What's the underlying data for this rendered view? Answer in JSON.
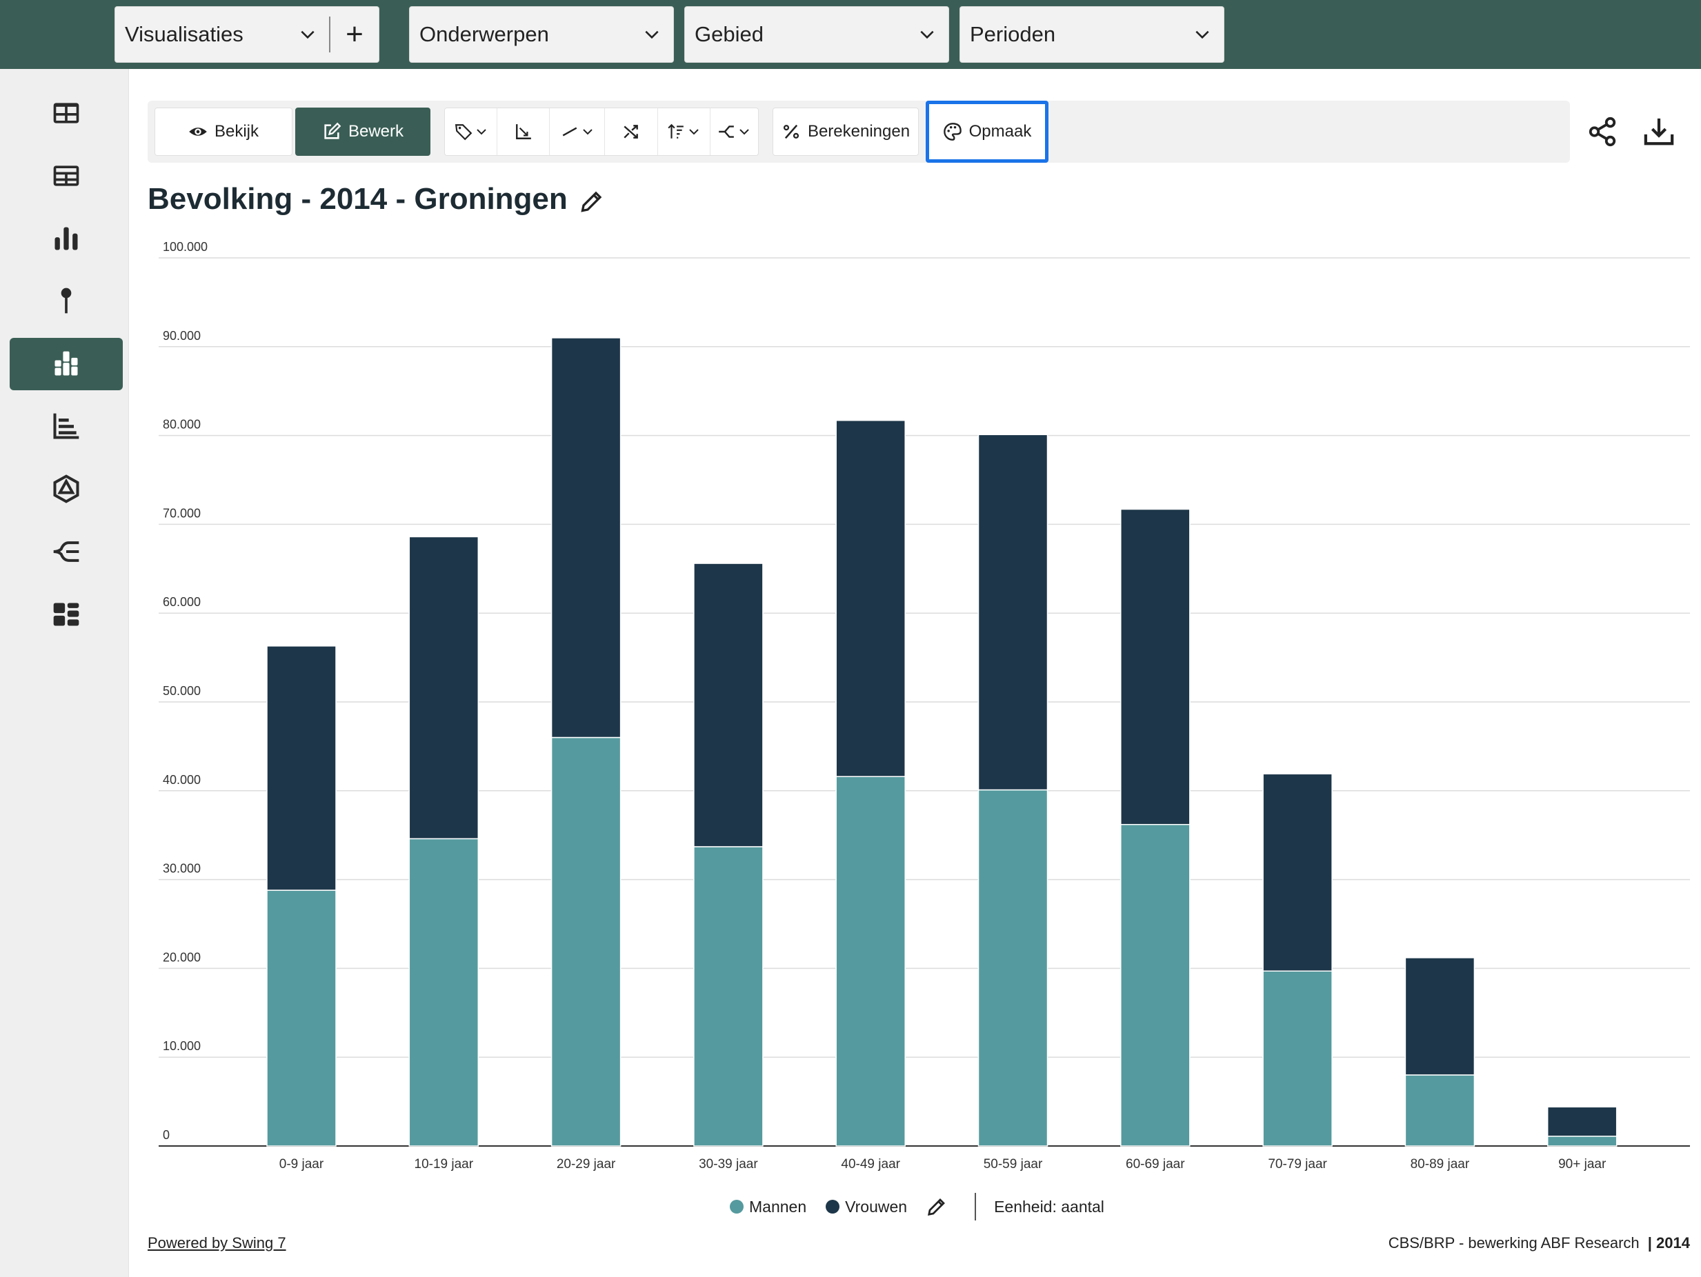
{
  "topbar": {
    "visualisaties": "Visualisaties",
    "plus": "+",
    "onderwerpen": "Onderwerpen",
    "gebied": "Gebied",
    "perioden": "Perioden"
  },
  "sidebar": {
    "items": [
      {
        "icon": "table-icon"
      },
      {
        "icon": "dashboard-table-icon"
      },
      {
        "icon": "bar-chart-icon"
      },
      {
        "icon": "map-pin-icon"
      },
      {
        "icon": "stacked-bar-icon",
        "active": true
      },
      {
        "icon": "horizontal-bar-icon"
      },
      {
        "icon": "radar-icon"
      },
      {
        "icon": "tree-icon"
      },
      {
        "icon": "tiles-icon"
      }
    ]
  },
  "toolbar": {
    "view_label": "Bekijk",
    "edit_label": "Bewerk",
    "calculations_label": "Berekeningen",
    "format_label": "Opmaak"
  },
  "title": "Bevolking - 2014 - Groningen",
  "colors": {
    "mannen": "#559a9e",
    "vrouwen": "#1d3649",
    "accent": "#3a5e55",
    "highlight": "#1a73e8"
  },
  "chart_data": {
    "type": "bar",
    "stacked": true,
    "categories": [
      "0-9 jaar",
      "10-19 jaar",
      "20-29 jaar",
      "30-39 jaar",
      "40-49 jaar",
      "50-59 jaar",
      "60-69 jaar",
      "70-79 jaar",
      "80-89 jaar",
      "90+ jaar"
    ],
    "series": [
      {
        "name": "Mannen",
        "color": "#559a9e",
        "values": [
          28800,
          34600,
          46000,
          33700,
          41600,
          40100,
          36200,
          19700,
          8000,
          1100
        ]
      },
      {
        "name": "Vrouwen",
        "color": "#1d3649",
        "values": [
          27500,
          34000,
          45000,
          31900,
          40100,
          40000,
          35500,
          22200,
          13200,
          3300
        ]
      }
    ],
    "yticks": [
      "0",
      "10.000",
      "20.000",
      "30.000",
      "40.000",
      "50.000",
      "60.000",
      "70.000",
      "80.000",
      "90.000",
      "100.000"
    ],
    "ylim": [
      0,
      100000
    ],
    "grid": true,
    "legend_position": "bottom"
  },
  "legend": {
    "mannen": "Mannen",
    "vrouwen": "Vrouwen",
    "unit": "Eenheid: aantal"
  },
  "footer": {
    "powered": "Powered by Swing 7",
    "source": "CBS/BRP - bewerking ABF Research",
    "year": "| 2014"
  }
}
